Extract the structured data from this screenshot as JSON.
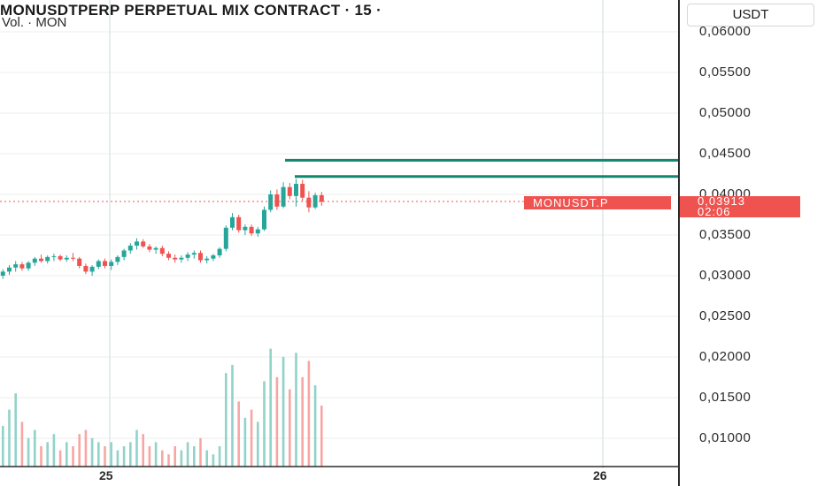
{
  "header": {
    "title": "MONUSDTPERP PERPETUAL MIX CONTRACT · 15 ·",
    "volume_label": "Vol. · MON"
  },
  "currency_button": "USDT",
  "price_axis": {
    "labels": [
      "0,06000",
      "0,05500",
      "0,05000",
      "0,04500",
      "0,04000",
      "0,03500",
      "0,03000",
      "0,02500",
      "0,02000",
      "0,01500",
      "0,01000"
    ]
  },
  "time_axis": {
    "labels": [
      "25",
      "26"
    ]
  },
  "symbol_tag": "MONUSDT.P",
  "last_price": "0,03913",
  "countdown": "02:06",
  "colors": {
    "up": "#26a69a",
    "down": "#ef5350",
    "line": "#12866f",
    "grid": "#eeeeee"
  },
  "horizontal_lines": [
    0.0442,
    0.0422
  ],
  "candles": [
    [
      0.03,
      0.0308,
      0.0296,
      0.0305
    ],
    [
      0.0305,
      0.0313,
      0.0301,
      0.031
    ],
    [
      0.031,
      0.0318,
      0.0305,
      0.0314
    ],
    [
      0.0314,
      0.0317,
      0.0306,
      0.0309
    ],
    [
      0.0309,
      0.0318,
      0.0306,
      0.0316
    ],
    [
      0.0316,
      0.0323,
      0.0312,
      0.0321
    ],
    [
      0.0321,
      0.0326,
      0.0316,
      0.0318
    ],
    [
      0.0318,
      0.0325,
      0.0315,
      0.0323
    ],
    [
      0.0323,
      0.0327,
      0.0318,
      0.0324
    ],
    [
      0.0324,
      0.0326,
      0.0318,
      0.032
    ],
    [
      0.032,
      0.0325,
      0.0317,
      0.0322
    ],
    [
      0.0322,
      0.0328,
      0.0318,
      0.0321
    ],
    [
      0.0321,
      0.0323,
      0.0309,
      0.0312
    ],
    [
      0.0312,
      0.0315,
      0.0302,
      0.0305
    ],
    [
      0.0305,
      0.0313,
      0.03,
      0.0311
    ],
    [
      0.0311,
      0.032,
      0.0308,
      0.0318
    ],
    [
      0.0318,
      0.0321,
      0.0309,
      0.0312
    ],
    [
      0.0312,
      0.032,
      0.0307,
      0.0317
    ],
    [
      0.0317,
      0.0325,
      0.0313,
      0.0323
    ],
    [
      0.0323,
      0.0333,
      0.0319,
      0.0331
    ],
    [
      0.0331,
      0.034,
      0.0327,
      0.0337
    ],
    [
      0.0337,
      0.0346,
      0.0332,
      0.0342
    ],
    [
      0.0342,
      0.0345,
      0.0334,
      0.0336
    ],
    [
      0.0336,
      0.0339,
      0.0329,
      0.0332
    ],
    [
      0.0332,
      0.0336,
      0.0327,
      0.0334
    ],
    [
      0.0334,
      0.0337,
      0.0324,
      0.0327
    ],
    [
      0.0327,
      0.033,
      0.0319,
      0.0322
    ],
    [
      0.0322,
      0.0326,
      0.0316,
      0.032
    ],
    [
      0.032,
      0.0325,
      0.0316,
      0.0322
    ],
    [
      0.0322,
      0.0329,
      0.0318,
      0.0326
    ],
    [
      0.0326,
      0.0331,
      0.0321,
      0.0328
    ],
    [
      0.0328,
      0.0331,
      0.0316,
      0.0319
    ],
    [
      0.0319,
      0.0324,
      0.0315,
      0.0321
    ],
    [
      0.0321,
      0.0327,
      0.0318,
      0.0325
    ],
    [
      0.0325,
      0.0335,
      0.0322,
      0.0333
    ],
    [
      0.0333,
      0.0362,
      0.033,
      0.0359
    ],
    [
      0.0359,
      0.0377,
      0.0356,
      0.0372
    ],
    [
      0.0372,
      0.0375,
      0.0353,
      0.0356
    ],
    [
      0.0356,
      0.0363,
      0.035,
      0.036
    ],
    [
      0.036,
      0.0363,
      0.0349,
      0.0352
    ],
    [
      0.0352,
      0.036,
      0.0348,
      0.0357
    ],
    [
      0.0357,
      0.0385,
      0.0355,
      0.0381
    ],
    [
      0.0381,
      0.0405,
      0.0378,
      0.04
    ],
    [
      0.04,
      0.0406,
      0.0381,
      0.0385
    ],
    [
      0.0385,
      0.0415,
      0.0383,
      0.0409
    ],
    [
      0.0409,
      0.0414,
      0.0394,
      0.0398
    ],
    [
      0.0398,
      0.0419,
      0.0385,
      0.0413
    ],
    [
      0.0413,
      0.0418,
      0.0392,
      0.0396
    ],
    [
      0.0396,
      0.0404,
      0.0378,
      0.0384
    ],
    [
      0.0384,
      0.0402,
      0.0382,
      0.0399
    ],
    [
      0.0399,
      0.0403,
      0.0386,
      0.0391
    ]
  ],
  "volumes": [
    1.0,
    1.4,
    1.8,
    1.1,
    0.7,
    0.9,
    0.5,
    0.6,
    0.8,
    0.4,
    0.6,
    0.5,
    0.8,
    0.9,
    0.7,
    0.6,
    0.5,
    0.6,
    0.4,
    0.5,
    0.6,
    0.9,
    0.8,
    0.5,
    0.6,
    0.4,
    0.3,
    0.5,
    0.4,
    0.6,
    0.5,
    0.7,
    0.4,
    0.3,
    0.5,
    2.3,
    2.5,
    1.6,
    1.2,
    1.4,
    1.1,
    2.1,
    2.9,
    2.2,
    2.7,
    1.9,
    2.8,
    2.2,
    2.6,
    2.0,
    1.5
  ]
}
